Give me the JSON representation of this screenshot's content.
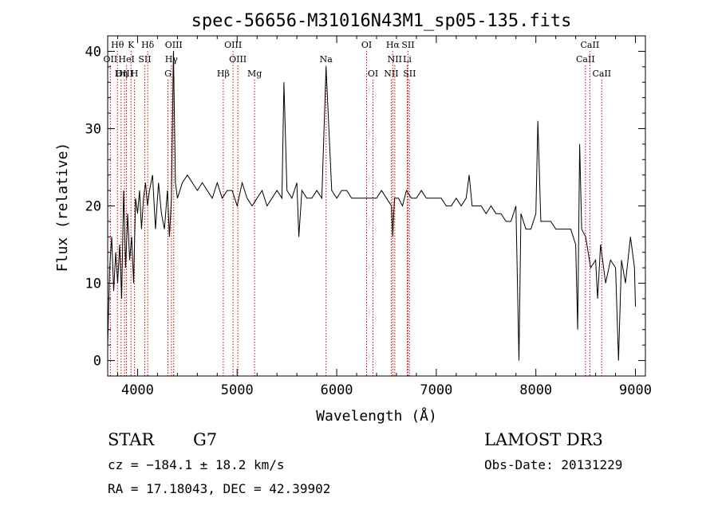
{
  "chart_data": {
    "type": "line",
    "title": "spec-56656-M31016N43M1_sp05-135.fits",
    "xlabel": "Wavelength (Å)",
    "ylabel": "Flux (relative)",
    "xlim": [
      3700,
      9100
    ],
    "ylim": [
      -2,
      42
    ],
    "xticks": [
      4000,
      5000,
      6000,
      7000,
      8000,
      9000
    ],
    "yticks": [
      0,
      10,
      20,
      30,
      40
    ],
    "xtick_labels": [
      "4000",
      "5000",
      "6000",
      "7000",
      "8000",
      "9000"
    ],
    "ytick_labels": [
      "0",
      "10",
      "20",
      "30",
      "40"
    ],
    "line_color": "#000000",
    "marker_color": "#cc0000",
    "lines": [
      {
        "name": "Hθ",
        "x": 3798,
        "row": 0
      },
      {
        "name": "K",
        "x": 3934,
        "row": 0
      },
      {
        "name": "Hδ",
        "x": 4102,
        "row": 0
      },
      {
        "name": "OIII",
        "x": 4363,
        "row": 0
      },
      {
        "name": "OIII",
        "x": 4959,
        "row": 0
      },
      {
        "name": "OI",
        "x": 6300,
        "row": 0
      },
      {
        "name": "Hα",
        "x": 6563,
        "row": 0
      },
      {
        "name": "SII",
        "x": 6716,
        "row": 0
      },
      {
        "name": "CaII",
        "x": 8542,
        "row": 0
      },
      {
        "name": "OII",
        "x": 3727,
        "row": 1
      },
      {
        "name": "HeI",
        "x": 3889,
        "row": 1
      },
      {
        "name": "SII",
        "x": 4072,
        "row": 1
      },
      {
        "name": "Hγ",
        "x": 4340,
        "row": 1
      },
      {
        "name": "OIII",
        "x": 5007,
        "row": 1
      },
      {
        "name": "Na",
        "x": 5893,
        "row": 1
      },
      {
        "name": "NII",
        "x": 6583,
        "row": 1
      },
      {
        "name": "Li",
        "x": 6708,
        "row": 1
      },
      {
        "name": "CaII",
        "x": 8498,
        "row": 1
      },
      {
        "name": "OIII",
        "x": 3869,
        "row": 2
      },
      {
        "name": "Hη",
        "x": 3835,
        "row": 2
      },
      {
        "name": "H",
        "x": 3969,
        "row": 2
      },
      {
        "name": "G",
        "x": 4305,
        "row": 2
      },
      {
        "name": "Hβ",
        "x": 4861,
        "row": 2
      },
      {
        "name": "Mg",
        "x": 5175,
        "row": 2
      },
      {
        "name": "OI",
        "x": 6364,
        "row": 2
      },
      {
        "name": "NII",
        "x": 6548,
        "row": 2
      },
      {
        "name": "SII",
        "x": 6731,
        "row": 2
      },
      {
        "name": "CaII",
        "x": 8662,
        "row": 2
      }
    ],
    "spectrum": {
      "x": [
        3700,
        3720,
        3740,
        3760,
        3780,
        3800,
        3820,
        3840,
        3860,
        3880,
        3900,
        3920,
        3940,
        3960,
        3980,
        4000,
        4020,
        4040,
        4060,
        4080,
        4100,
        4120,
        4150,
        4180,
        4210,
        4240,
        4270,
        4300,
        4320,
        4340,
        4360,
        4380,
        4400,
        4450,
        4500,
        4550,
        4600,
        4650,
        4700,
        4750,
        4800,
        4850,
        4900,
        4950,
        5000,
        5050,
        5100,
        5150,
        5200,
        5250,
        5300,
        5350,
        5400,
        5450,
        5470,
        5500,
        5550,
        5600,
        5620,
        5650,
        5700,
        5750,
        5800,
        5850,
        5893,
        5950,
        6000,
        6050,
        6100,
        6150,
        6200,
        6250,
        6300,
        6350,
        6400,
        6450,
        6500,
        6550,
        6563,
        6580,
        6620,
        6660,
        6700,
        6750,
        6800,
        6850,
        6900,
        6950,
        7000,
        7050,
        7100,
        7150,
        7200,
        7250,
        7300,
        7330,
        7360,
        7400,
        7450,
        7500,
        7550,
        7600,
        7650,
        7700,
        7750,
        7800,
        7830,
        7850,
        7900,
        7950,
        8000,
        8020,
        8050,
        8100,
        8150,
        8200,
        8250,
        8300,
        8350,
        8400,
        8420,
        8440,
        8460,
        8500,
        8550,
        8600,
        8620,
        8650,
        8680,
        8700,
        8750,
        8800,
        8830,
        8860,
        8900,
        8950,
        8990,
        9000
      ],
      "y": [
        2,
        12,
        16,
        9,
        14,
        10,
        15,
        8,
        22,
        12,
        19,
        13,
        16,
        10,
        21,
        19,
        22,
        17,
        21,
        23,
        20,
        22,
        24,
        17,
        23,
        19,
        17,
        22,
        16,
        21,
        40,
        23,
        21,
        23,
        24,
        23,
        22,
        23,
        22,
        21,
        23,
        21,
        22,
        22,
        20,
        23,
        21,
        20,
        21,
        22,
        20,
        21,
        22,
        21,
        36,
        22,
        21,
        23,
        16,
        22,
        21,
        21,
        22,
        21,
        38,
        22,
        21,
        22,
        22,
        21,
        21,
        21,
        21,
        21,
        21,
        22,
        21,
        20,
        16,
        21,
        21,
        20,
        22,
        21,
        21,
        22,
        21,
        21,
        21,
        21,
        20,
        20,
        21,
        20,
        21,
        24,
        20,
        20,
        20,
        19,
        20,
        19,
        19,
        18,
        18,
        20,
        0,
        19,
        17,
        17,
        19,
        31,
        18,
        18,
        18,
        17,
        17,
        17,
        17,
        15,
        4,
        28,
        17,
        16,
        12,
        13,
        8,
        15,
        12,
        10,
        13,
        12,
        0,
        13,
        10,
        16,
        12,
        7
      ]
    },
    "annotations": {
      "object_type": "STAR",
      "subclass": "G7",
      "survey": "LAMOST DR3",
      "cz_line": "cz = −184.1 ± 18.2 km/s",
      "date_line": "Obs-Date: 20131229",
      "radec_line": "RA =  17.18043, DEC =  42.39902"
    }
  }
}
